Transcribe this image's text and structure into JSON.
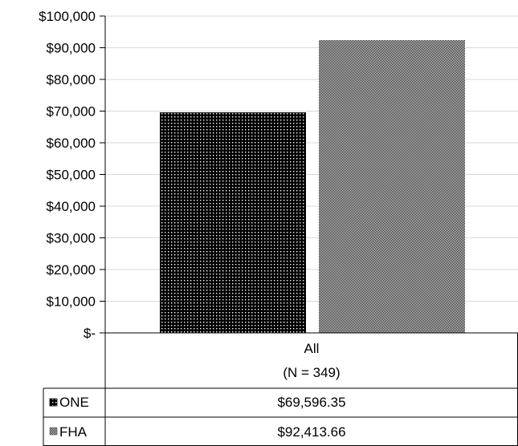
{
  "chart_data": {
    "type": "bar",
    "categories": [
      "All"
    ],
    "category_sublabels": [
      "(N = 349)"
    ],
    "series": [
      {
        "name": "ONE",
        "values": [
          69596.35
        ],
        "value_label": "$69,596.35",
        "pattern": "dots-on-black",
        "color": "#000000"
      },
      {
        "name": "FHA",
        "values": [
          92413.66
        ],
        "value_label": "$92,413.66",
        "pattern": "checker-gray",
        "color": "#5a5a5a"
      }
    ],
    "ylim": [
      0,
      100000
    ],
    "yticks": [
      0,
      10000,
      20000,
      30000,
      40000,
      50000,
      60000,
      70000,
      80000,
      90000,
      100000
    ],
    "ytick_labels": [
      "$-",
      "$10,000",
      "$20,000",
      "$30,000",
      "$40,000",
      "$50,000",
      "$60,000",
      "$70,000",
      "$80,000",
      "$90,000",
      "$100,000"
    ],
    "title": "",
    "xlabel": "",
    "ylabel": "",
    "grid": true,
    "legend": "data-table"
  }
}
